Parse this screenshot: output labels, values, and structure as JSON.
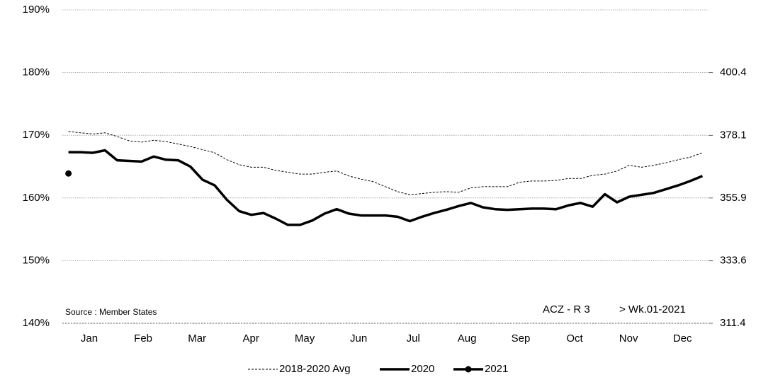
{
  "chart_data": {
    "type": "line",
    "annotations": {
      "source": "Source : Member States",
      "code": "ACZ - R 3",
      "week": "> Wk.01-2021"
    },
    "x": [
      1,
      2,
      3,
      4,
      5,
      6,
      7,
      8,
      9,
      10,
      11,
      12,
      13,
      14,
      15,
      16,
      17,
      18,
      19,
      20,
      21,
      22,
      23,
      24,
      25,
      26,
      27,
      28,
      29,
      30,
      31,
      32,
      33,
      34,
      35,
      36,
      37,
      38,
      39,
      40,
      41,
      42,
      43,
      44,
      45,
      46,
      47,
      48,
      49,
      50,
      51,
      52,
      53
    ],
    "xlim": [
      0.5,
      53.5
    ],
    "xticks": [
      {
        "value": 2.71,
        "label": "Jan"
      },
      {
        "value": 7.13,
        "label": "Feb"
      },
      {
        "value": 11.55,
        "label": "Mar"
      },
      {
        "value": 15.97,
        "label": "Apr"
      },
      {
        "value": 20.38,
        "label": "May"
      },
      {
        "value": 24.8,
        "label": "Jun"
      },
      {
        "value": 29.28,
        "label": "Jul"
      },
      {
        "value": 33.69,
        "label": "Aug"
      },
      {
        "value": 38.1,
        "label": "Sep"
      },
      {
        "value": 42.52,
        "label": "Oct"
      },
      {
        "value": 46.94,
        "label": "Nov"
      },
      {
        "value": 51.36,
        "label": "Dec"
      }
    ],
    "ylim": [
      140,
      190
    ],
    "yticks": [
      {
        "value": 140,
        "label": "140%"
      },
      {
        "value": 150,
        "label": "150%"
      },
      {
        "value": 160,
        "label": "160%"
      },
      {
        "value": 170,
        "label": "170%"
      },
      {
        "value": 180,
        "label": "180%"
      },
      {
        "value": 190,
        "label": "190%"
      }
    ],
    "y2lim": [
      311.4,
      422.65
    ],
    "y2ticks": [
      311.4,
      333.6,
      355.9,
      378.1,
      400.4
    ],
    "grid": true,
    "legend": "bottom",
    "series": [
      {
        "name": "2018-2020 Avg",
        "color": "#000000",
        "style": "dashed",
        "values": [
          170.6,
          170.4,
          170.2,
          170.4,
          169.8,
          169.1,
          168.9,
          169.2,
          169.0,
          168.6,
          168.2,
          167.7,
          167.2,
          166.1,
          165.3,
          164.9,
          164.9,
          164.4,
          164.1,
          163.8,
          163.8,
          164.1,
          164.3,
          163.5,
          163.0,
          162.6,
          161.8,
          161.0,
          160.5,
          160.7,
          160.9,
          161.0,
          160.9,
          161.6,
          161.8,
          161.8,
          161.8,
          162.5,
          162.7,
          162.7,
          162.8,
          163.1,
          163.1,
          163.6,
          163.8,
          164.3,
          165.2,
          164.9,
          165.2,
          165.6,
          166.1,
          166.5,
          167.2
        ]
      },
      {
        "name": "2020",
        "color": "#000000",
        "style": "solid",
        "values": [
          167.3,
          167.3,
          167.2,
          167.6,
          166.0,
          165.9,
          165.8,
          166.6,
          166.1,
          166.0,
          165.0,
          162.9,
          162.0,
          159.7,
          157.9,
          157.3,
          157.6,
          156.7,
          155.7,
          155.7,
          156.4,
          157.5,
          158.2,
          157.5,
          157.2,
          157.2,
          157.2,
          157.0,
          156.3,
          157.0,
          157.6,
          158.1,
          158.7,
          159.2,
          158.5,
          158.2,
          158.1,
          158.2,
          158.3,
          158.3,
          158.2,
          158.8,
          159.2,
          158.6,
          160.6,
          159.3,
          160.2,
          160.5,
          160.8,
          161.4,
          162.0,
          162.7,
          163.5
        ]
      },
      {
        "name": "2021",
        "color": "#000000",
        "style": "marker",
        "values": [
          163.9,
          null,
          null,
          null,
          null,
          null,
          null,
          null,
          null,
          null,
          null,
          null,
          null,
          null,
          null,
          null,
          null,
          null,
          null,
          null,
          null,
          null,
          null,
          null,
          null,
          null,
          null,
          null,
          null,
          null,
          null,
          null,
          null,
          null,
          null,
          null,
          null,
          null,
          null,
          null,
          null,
          null,
          null,
          null,
          null,
          null,
          null,
          null,
          null,
          null,
          null,
          null,
          null
        ]
      }
    ]
  }
}
